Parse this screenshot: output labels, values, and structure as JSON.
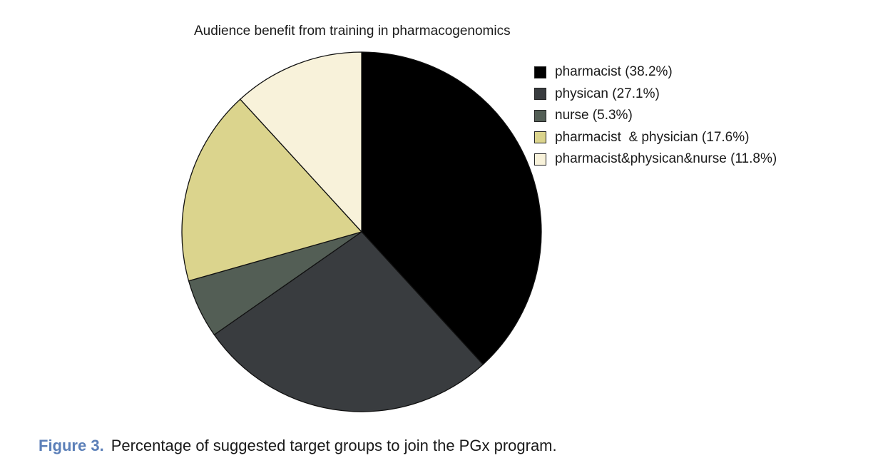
{
  "chart_data": {
    "type": "pie",
    "title": "Audience benefit from training in pharmacogenomics",
    "slices": [
      {
        "label": "pharmacist (38.2%)",
        "value": 38.2,
        "color": "#000000"
      },
      {
        "label": "physican (27.1%)",
        "value": 27.1,
        "color": "#393c3f"
      },
      {
        "label": "nurse (5.3%)",
        "value": 5.3,
        "color": "#535e55"
      },
      {
        "label": "pharmacist  & physician (17.6%)",
        "value": 17.6,
        "color": "#dbd48d"
      },
      {
        "label": "pharmacist&physican&nurse (11.8%)",
        "value": 11.8,
        "color": "#f8f2da"
      }
    ],
    "legend_position": "right"
  },
  "caption": {
    "label": "Figure 3.",
    "text": "Percentage of suggested target groups to join the PGx program."
  }
}
